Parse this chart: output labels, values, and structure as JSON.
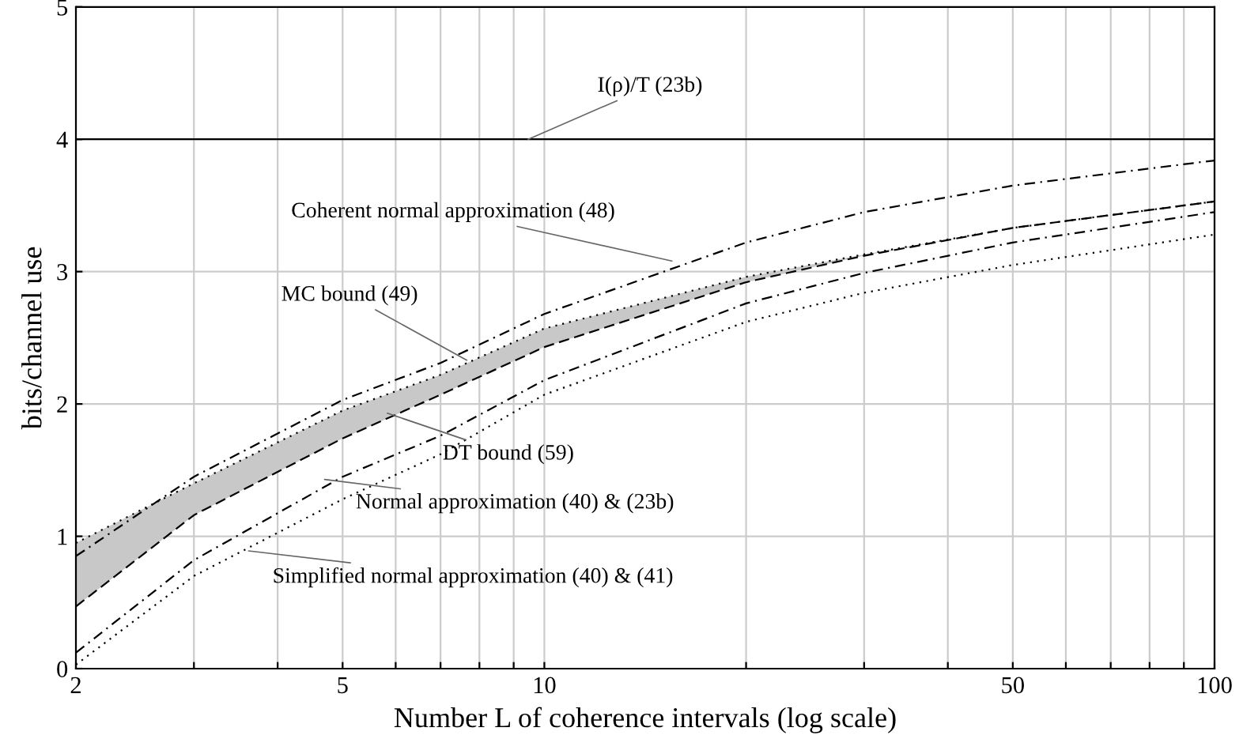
{
  "chart_data": {
    "type": "line",
    "xlabel": "Number L of coherence intervals (log scale)",
    "ylabel": "bits/channel use",
    "x": [
      2,
      3,
      5,
      7,
      10,
      20,
      30,
      50,
      100
    ],
    "series": [
      {
        "color": "#000000",
        "line_style": "dashdot",
        "values": [
          0.85,
          1.45,
          2.03,
          2.31,
          2.68,
          3.22,
          3.45,
          3.65,
          3.84
        ]
      },
      {
        "color": "#000000",
        "line_style": "dotted",
        "values": [
          0.95,
          1.4,
          1.95,
          2.22,
          2.57,
          2.96,
          3.13,
          3.33,
          3.53
        ],
        "lower": [
          0.47,
          1.16,
          1.74,
          2.07,
          2.43,
          2.92,
          3.12,
          3.33,
          3.53
        ],
        "upper": [
          0.95,
          1.4,
          1.95,
          2.22,
          2.57,
          2.96,
          3.13,
          3.33,
          3.53
        ]
      },
      {
        "color": "#000000",
        "line_style": "dashed",
        "values": [
          0.47,
          1.16,
          1.74,
          2.07,
          2.43,
          2.92,
          3.12,
          3.33,
          3.53
        ]
      },
      {
        "color": "#000000",
        "line_style": "dashdot",
        "values": [
          0.12,
          0.82,
          1.45,
          1.76,
          2.18,
          2.76,
          2.99,
          3.22,
          3.45
        ]
      },
      {
        "color": "#000000",
        "line_style": "dotted",
        "values": [
          0.03,
          0.7,
          1.28,
          1.62,
          2.07,
          2.62,
          2.84,
          3.05,
          3.28
        ]
      }
    ],
    "annotations": [
      {
        "text": "Coherent normal approximation (48)",
        "x": 15.5,
        "y": 3.08
      },
      {
        "text": "MC bound (49)",
        "x": 7.66,
        "y": 2.33
      },
      {
        "text": "DT bound (59)",
        "x": 5.83,
        "y": 1.93
      },
      {
        "text": "Normal approximation (40) & (23b)",
        "x": 4.7,
        "y": 1.43
      },
      {
        "text": "Simplified normal approximation (40) & (41)",
        "x": 3.62,
        "y": 0.89
      }
    ],
    "ref_lines": [
      {
        "axis": "y",
        "value": 4,
        "label": "I(ρ)/T (23b)",
        "color": "#000000",
        "line_style": "solid"
      }
    ],
    "log": "x",
    "xlim": [
      2,
      100
    ],
    "ylim": [
      0,
      5
    ],
    "xticks": [
      2,
      {
        "value": 3,
        "label": null
      },
      {
        "value": 4,
        "label": null
      },
      5,
      {
        "value": 6,
        "label": null
      },
      {
        "value": 7,
        "label": null
      },
      {
        "value": 8,
        "label": null
      },
      {
        "value": 9,
        "label": null
      },
      10,
      {
        "value": 20,
        "label": null
      },
      {
        "value": 30,
        "label": null
      },
      {
        "value": 40,
        "label": null
      },
      50,
      {
        "value": 60,
        "label": null
      },
      {
        "value": 70,
        "label": null
      },
      {
        "value": 80,
        "label": null
      },
      {
        "value": 90,
        "label": null
      },
      100
    ],
    "yticks": [
      0,
      1,
      2,
      3,
      4,
      5
    ],
    "grid": true
  }
}
